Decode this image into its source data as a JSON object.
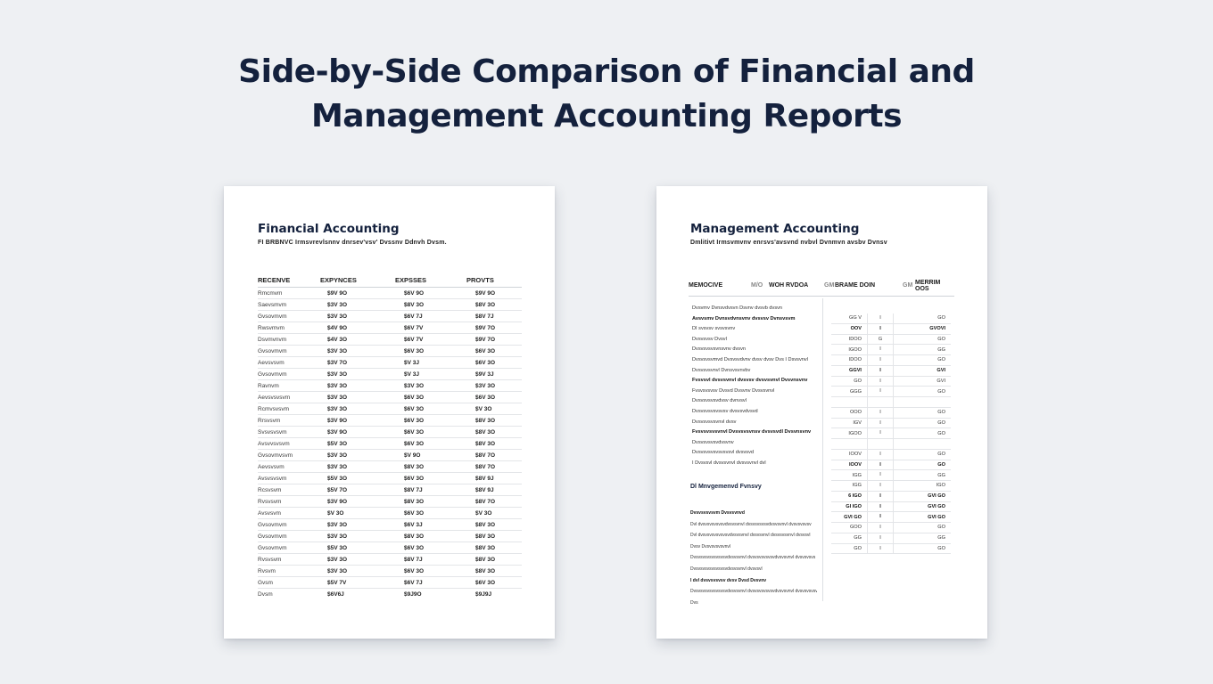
{
  "title": {
    "line1": "Side-by-Side Comparison of Financial and",
    "line2": "Management Accounting Reports"
  },
  "financial": {
    "title": "Financial Accounting",
    "subtitle": "FI BRBNVC Irmsvrevlsnnv dnrsev'vsv' Dvssnv Ddnvh Dvsm.",
    "columns": [
      "RECENVE",
      "EXPYNCES",
      "EXPSSES",
      "PROVTS"
    ],
    "rows": [
      [
        "Rmcmvm",
        "$9V 9O",
        "$6V 9O",
        "$9V 9O"
      ],
      [
        "Saevsmvm",
        "$3V 3O",
        "$8V 3O",
        "$8V 3O"
      ],
      [
        "Gvsovmvm",
        "$3V 3O",
        "$6V 7J",
        "$8V 7J"
      ],
      [
        "Rwsvmvm",
        "$4V 9O",
        "$6V 7V",
        "$9V 7O"
      ],
      [
        "Dsvmvnvm",
        "$4V 3O",
        "$6V 7V",
        "$9V 7O"
      ],
      [
        "Gvsovmvm",
        "$3V 3O",
        "$6V 3O",
        "$6V 3O"
      ],
      [
        "Aevsvsvm",
        "$3V 7O",
        "$V 3J",
        "$6V 3O"
      ],
      [
        "Gvsovmvm",
        "$3V 3O",
        "$V 3J",
        "$9V 3J"
      ],
      [
        "Ravnvm",
        "$3V 3O",
        "$3V 3O",
        "$3V 3O"
      ],
      [
        "Aevsvsvsvm",
        "$3V 3O",
        "$6V 3O",
        "$6V 3O"
      ],
      [
        "Rcmvsvsvm",
        "$3V 3O",
        "$6V 3O",
        "$V 3O"
      ],
      [
        "Rrsvsvm",
        "$3V 9O",
        "$6V 3O",
        "$8V 3O"
      ],
      [
        "Svsvsvsvm",
        "$3V 9O",
        "$6V 3O",
        "$8V 3O"
      ],
      [
        "Avsvvsvsvm",
        "$5V 3O",
        "$6V 3O",
        "$8V 3O"
      ],
      [
        "Gvsovmvsvm",
        "$3V 3O",
        "$V 9O",
        "$8V 7O"
      ],
      [
        "Aevsvsvm",
        "$3V 3O",
        "$8V 3O",
        "$8V 7O"
      ],
      [
        "Avsvsvsvm",
        "$5V 3O",
        "$6V 3O",
        "$8V 9J"
      ],
      [
        "Rcsvsvm",
        "$5V 7O",
        "$8V 7J",
        "$8V 9J"
      ],
      [
        "Rvsvsvm",
        "$3V 9O",
        "$8V 3O",
        "$8V 7O"
      ],
      [
        "Avsvsvm",
        "$V 3O",
        "$6V 3O",
        "$V 3O"
      ],
      [
        "Gvsovmvm",
        "$3V 3O",
        "$6V 3J",
        "$8V 3O"
      ],
      [
        "Gvsovmvm",
        "$3V 3O",
        "$8V 3O",
        "$8V 3O"
      ],
      [
        "Gvsovmvm",
        "$5V 3O",
        "$6V 3O",
        "$8V 3O"
      ],
      [
        "Rvsvsvm",
        "$3V 3O",
        "$8V 7J",
        "$8V 3O"
      ],
      [
        "Rvsvm",
        "$3V 3O",
        "$6V 3O",
        "$8V 3O"
      ],
      [
        "Gvsm",
        "$5V 7V",
        "$6V 7J",
        "$6V 3O"
      ],
      [
        "Dvsm",
        "$6V6J",
        "$9J9O",
        "$9J9J"
      ]
    ]
  },
  "management": {
    "title": "Management Accounting",
    "subtitle": "Dmlitivt Irmsvmvnv enrsvs'avsvnd nvbvl Dvnmvn avsbv Dvnsv",
    "columns": [
      "MEMOCIVE",
      "M/O",
      "WOH RVDOA",
      "GM",
      "BRAME DOIN",
      "GM",
      "MERRIM OOS"
    ],
    "left_lines": [
      {
        "text": "Dvsvmv Dvnsvdvsvn Dsvnv dvsvb dvsvn",
        "bold": false
      },
      {
        "text": "Avsvsmv Dvnsvdvnsvnv dvsvsv Dvnsvsvm",
        "bold": true
      },
      {
        "text": "DI svsvsv svsvsvnv",
        "bold": false
      },
      {
        "text": "Dvsvsvsv Dvsvl",
        "bold": false
      },
      {
        "text": "Dvsvsvsvsvnsvnv dvsvn",
        "bold": false
      },
      {
        "text": "Dvsvsvsvmvd Dvsvsvdvnv dvsv dvsv Dvs I Dsvsvnvl",
        "bold": false
      },
      {
        "text": "Dvsvsvsvnvl Dvnsvsvnvbv",
        "bold": false
      },
      {
        "text": "Fvsvsvl dvsvsvnvl dvsvsv dvsvsvnvl Dvsvnsvnv",
        "bold": true
      },
      {
        "text": "Fvsvsvsvsv Dvsvd Dvsvnv Dvsvsvnvl",
        "bold": false
      },
      {
        "text": "Dvsvsvsvsvdvsv dvnvsvl",
        "bold": false
      },
      {
        "text": "Dvsvsvsvsvsvsv dvsvsvdvsvd",
        "bold": false
      },
      {
        "text": "Dvsvsvsvsvnvl dvsv",
        "bold": false
      },
      {
        "text": "Fvsvsvsvsvnvl Dvsvsvsvnsv dvsvsvdl Dvsvnsvnv",
        "bold": true
      },
      {
        "text": "Dvsvsvsvsvdvsvnv",
        "bold": false
      },
      {
        "text": "Dvsvsvsvsvsvsvsvl dvsvsvd",
        "bold": false
      },
      {
        "text": "I Dvsvsvl dvsvsvnvl dvsvsvnvl dvl",
        "bold": false
      }
    ],
    "section_title": "Dl Mnvgemenvd Fvnsvy",
    "notes": [
      {
        "text": "Dvsvsvsvsvm Dvsvsvnvd",
        "bold": true
      },
      {
        "text": "Dvl dvsvsvsvsvsvdvsvsvnvl dvsvsvsvsvdvsvsvnvl dvsvsvsvsv",
        "bold": false
      },
      {
        "text": "Dvl dvsvsvsvsvsvsvdvsvsvnvl dvsvsvnvl dvsvsvsvnvl dvsvsvl",
        "bold": false
      },
      {
        "text": "Dvsv Dvsvsvsvsvnvl",
        "bold": false
      },
      {
        "text": "Dvsvsvsvsvsvsvsvdvsvsvnvl dvsvsvsvsvsvdvsvsvnvl dvsvsvsvs",
        "bold": false
      },
      {
        "text": "Dvsvsvsvsvsvsvsvdvsvsvnvl dvsvsvl",
        "bold": false
      },
      {
        "text": "I dvl dvsvsvsvsv dvsv Dvsd Dvsvnv",
        "bold": true
      },
      {
        "text": "Dvsvsvsvsvsvsvsvdvsvsvnvl dvsvsvsvsvsvdvsvsvnvl dvsvsvsvsvsv",
        "bold": false
      },
      {
        "text": "Dvs",
        "bold": false
      }
    ],
    "right_rows": [
      {
        "a": "GG V",
        "b": "I",
        "c": "GO",
        "bold": false
      },
      {
        "a": "OOV",
        "b": "I",
        "c": "GVOVI",
        "bold": true
      },
      {
        "a": "IDOO",
        "b": "G",
        "c": "GO",
        "bold": false
      },
      {
        "a": "IGOO",
        "b": "I",
        "c": "GG",
        "bold": false
      },
      {
        "a": "IDOO",
        "b": "I",
        "c": "GO",
        "bold": false
      },
      {
        "a": "GGVI",
        "b": "I",
        "c": "GVI",
        "bold": true
      },
      {
        "a": "GO",
        "b": "I",
        "c": "GVI",
        "bold": false
      },
      {
        "a": "GGG",
        "b": "I",
        "c": "GO",
        "bold": false
      },
      {
        "a": "",
        "b": "",
        "c": "",
        "bold": false
      },
      {
        "a": "OOO",
        "b": "I",
        "c": "GO",
        "bold": false
      },
      {
        "a": "IGV",
        "b": "I",
        "c": "GO",
        "bold": false
      },
      {
        "a": "IGOO",
        "b": "I",
        "c": "GO",
        "bold": false
      },
      {
        "a": "",
        "b": "",
        "c": "",
        "bold": false
      },
      {
        "a": "IOOV",
        "b": "I",
        "c": "GO",
        "bold": false
      },
      {
        "a": "IOOV",
        "b": "I",
        "c": "GO",
        "bold": true
      },
      {
        "a": "IGG",
        "b": "I",
        "c": "GG",
        "bold": false
      },
      {
        "a": "IGG",
        "b": "I",
        "c": "IGO",
        "bold": false
      },
      {
        "a": "6 IGO",
        "b": "I",
        "c": "GVI GO",
        "bold": true
      },
      {
        "a": "GI IGO",
        "b": "I",
        "c": "GVI GO",
        "bold": true
      },
      {
        "a": "GVI GO",
        "b": "I",
        "c": "GVI GO",
        "bold": true
      },
      {
        "a": "GOO",
        "b": "I",
        "c": "GO",
        "bold": false
      },
      {
        "a": "GG",
        "b": "I",
        "c": "GG",
        "bold": false
      },
      {
        "a": "GO",
        "b": "I",
        "c": "GO",
        "bold": false
      }
    ]
  }
}
